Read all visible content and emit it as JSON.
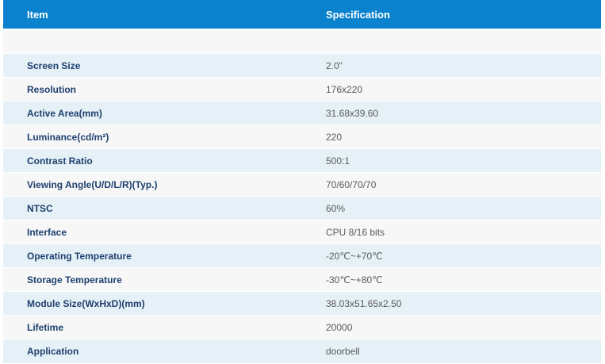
{
  "header": {
    "item": "Item",
    "specification": "Specification"
  },
  "rows": [
    {
      "key": "Screen Size",
      "value": "2.0\""
    },
    {
      "key": "Resolution",
      "value": "176x220"
    },
    {
      "key": "Active Area(mm)",
      "value": "31.68x39.60"
    },
    {
      "key": "Luminance(cd/m²)",
      "value": "220"
    },
    {
      "key": "Contrast Ratio",
      "value": "500:1"
    },
    {
      "key": "Viewing Angle(U/D/L/R)(Typ.)",
      "value": "70/60/70/70"
    },
    {
      "key": "NTSC",
      "value": "60%"
    },
    {
      "key": "Interface",
      "value": "CPU 8/16 bits"
    },
    {
      "key": "Operating Temperature",
      "value": "-20℃~+70℃"
    },
    {
      "key": "Storage Temperature",
      "value": "-30℃~+80℃"
    },
    {
      "key": "Module Size(WxHxD)(mm)",
      "value": "38.03x51.65x2.50"
    },
    {
      "key": "Lifetime",
      "value": "20000"
    },
    {
      "key": "Application",
      "value": "doorbell"
    }
  ]
}
